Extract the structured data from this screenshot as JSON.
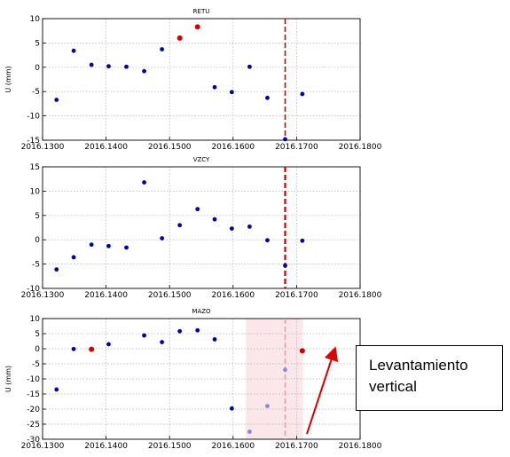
{
  "chart_data": [
    {
      "type": "scatter",
      "title": "RETU",
      "ylabel": "U (mm)",
      "xlim": [
        2016.13,
        2016.18
      ],
      "ylim": [
        -15,
        10
      ],
      "xticks": [
        "2016.1300",
        "2016.1400",
        "2016.1500",
        "2016.1600",
        "2016.1700",
        "2016.1800"
      ],
      "yticks": [
        "10",
        "5",
        "0",
        "-5",
        "-10",
        "-15"
      ],
      "grid": true,
      "points": [
        {
          "x": 2016.1322,
          "y": -6.7,
          "color": "#0000aa"
        },
        {
          "x": 2016.1349,
          "y": 3.4,
          "color": "#0000aa"
        },
        {
          "x": 2016.1377,
          "y": 0.5,
          "color": "#0000aa"
        },
        {
          "x": 2016.1404,
          "y": 0.2,
          "color": "#0000aa"
        },
        {
          "x": 2016.1432,
          "y": 0.1,
          "color": "#0000aa"
        },
        {
          "x": 2016.146,
          "y": -0.8,
          "color": "#0000aa"
        },
        {
          "x": 2016.1488,
          "y": 3.7,
          "color": "#0000aa"
        },
        {
          "x": 2016.1516,
          "y": 6.0,
          "color": "#cc0000"
        },
        {
          "x": 2016.1544,
          "y": 8.3,
          "color": "#cc0000"
        },
        {
          "x": 2016.1571,
          "y": -4.1,
          "color": "#0000aa"
        },
        {
          "x": 2016.1598,
          "y": -5.1,
          "color": "#0000aa"
        },
        {
          "x": 2016.1626,
          "y": 0.1,
          "color": "#0000aa"
        },
        {
          "x": 2016.1654,
          "y": -6.3,
          "color": "#0000aa"
        },
        {
          "x": 2016.1682,
          "y": -14.8,
          "color": "#0000aa"
        },
        {
          "x": 2016.1709,
          "y": -5.5,
          "color": "#0000aa"
        }
      ],
      "vline": {
        "x": 2016.1682,
        "style": "dashed",
        "color": "#cc0000"
      }
    },
    {
      "type": "scatter",
      "title": "VZCY",
      "ylabel": "",
      "xlim": [
        2016.13,
        2016.18
      ],
      "ylim": [
        -10,
        15
      ],
      "xticks": [
        "2016.1300",
        "2016.1400",
        "2016.1500",
        "2016.1600",
        "2016.1700",
        "2016.1800"
      ],
      "yticks": [
        "15",
        "10",
        "5",
        "0",
        "-5",
        "-10"
      ],
      "grid": true,
      "points": [
        {
          "x": 2016.1322,
          "y": -6.1,
          "color": "#0000aa"
        },
        {
          "x": 2016.1349,
          "y": -3.6,
          "color": "#0000aa"
        },
        {
          "x": 2016.1377,
          "y": -1.0,
          "color": "#0000aa"
        },
        {
          "x": 2016.1404,
          "y": -1.3,
          "color": "#0000aa"
        },
        {
          "x": 2016.1432,
          "y": -1.6,
          "color": "#0000aa"
        },
        {
          "x": 2016.146,
          "y": 11.8,
          "color": "#0000aa"
        },
        {
          "x": 2016.1488,
          "y": 0.3,
          "color": "#0000aa"
        },
        {
          "x": 2016.1516,
          "y": 3.0,
          "color": "#0000aa"
        },
        {
          "x": 2016.1544,
          "y": 6.3,
          "color": "#0000aa"
        },
        {
          "x": 2016.1571,
          "y": 4.2,
          "color": "#0000aa"
        },
        {
          "x": 2016.1598,
          "y": 2.3,
          "color": "#0000aa"
        },
        {
          "x": 2016.1626,
          "y": 2.7,
          "color": "#0000aa"
        },
        {
          "x": 2016.1654,
          "y": -0.1,
          "color": "#0000aa"
        },
        {
          "x": 2016.1682,
          "y": -5.3,
          "color": "#0000aa"
        },
        {
          "x": 2016.1709,
          "y": -0.2,
          "color": "#0000aa"
        }
      ],
      "vline": {
        "x": 2016.1682,
        "style": "dashed",
        "color": "#cc0000"
      }
    },
    {
      "type": "scatter",
      "title": "MAZO",
      "ylabel": "U (mm)",
      "xlim": [
        2016.13,
        2016.18
      ],
      "ylim": [
        -30,
        10
      ],
      "xticks": [
        "2016.1300",
        "2016.1400",
        "2016.1500",
        "2016.1600",
        "2016.1700",
        "2016.1800"
      ],
      "yticks": [
        "10",
        "5",
        "0",
        "-5",
        "-10",
        "-15",
        "-20",
        "-25",
        "-30"
      ],
      "grid": true,
      "points": [
        {
          "x": 2016.1322,
          "y": -13.5,
          "color": "#0000aa"
        },
        {
          "x": 2016.1349,
          "y": -0.1,
          "color": "#0000aa"
        },
        {
          "x": 2016.1377,
          "y": -0.2,
          "color": "#cc0000"
        },
        {
          "x": 2016.1404,
          "y": 1.5,
          "color": "#0000aa"
        },
        {
          "x": 2016.146,
          "y": 4.4,
          "color": "#0000aa"
        },
        {
          "x": 2016.1488,
          "y": 2.2,
          "color": "#0000aa"
        },
        {
          "x": 2016.1516,
          "y": 5.8,
          "color": "#0000aa"
        },
        {
          "x": 2016.1544,
          "y": 6.1,
          "color": "#0000aa"
        },
        {
          "x": 2016.1571,
          "y": 3.1,
          "color": "#0000aa"
        },
        {
          "x": 2016.1598,
          "y": -19.8,
          "color": "#0000aa"
        },
        {
          "x": 2016.1626,
          "y": -27.5,
          "color": "#8888dd"
        },
        {
          "x": 2016.1654,
          "y": -19.0,
          "color": "#8888dd"
        },
        {
          "x": 2016.1682,
          "y": -7.0,
          "color": "#8888dd"
        },
        {
          "x": 2016.1709,
          "y": -0.7,
          "color": "#cc0000"
        }
      ],
      "vline": {
        "x": 2016.1682,
        "style": "dashed",
        "color": "#e8a0a0"
      },
      "shaded": {
        "x0": 2016.162,
        "x1": 2016.171,
        "color": "#fbe6ea"
      }
    }
  ],
  "annotation": {
    "lines": [
      "Levantamiento",
      "vertical"
    ],
    "arrow_color": "#dd0000"
  }
}
